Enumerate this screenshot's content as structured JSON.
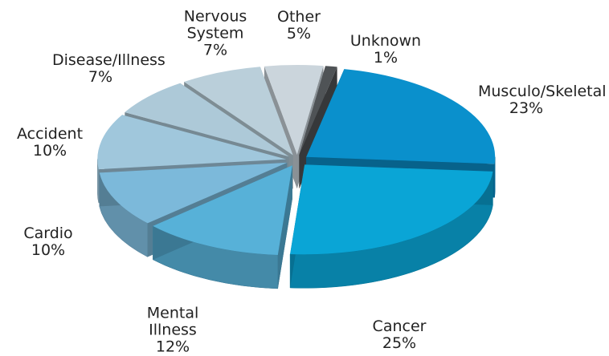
{
  "chart_data": {
    "type": "pie",
    "categories": [
      "Unknown",
      "Musculo/Skeletal",
      "Cancer",
      "Mental Illness",
      "Cardio",
      "Accident",
      "Disease/Illness",
      "Nervous System",
      "Other"
    ],
    "values": [
      1,
      23,
      25,
      12,
      10,
      10,
      7,
      7,
      5
    ],
    "value_labels": [
      "1%",
      "23%",
      "25%",
      "12%",
      "10%",
      "10%",
      "7%",
      "7%",
      "5%"
    ],
    "colors": [
      "#4f5356",
      "#0a90cc",
      "#0aa5d6",
      "#57b1d8",
      "#7cb9da",
      "#a0c7dc",
      "#adc9d8",
      "#bacfda",
      "#cbd5dc"
    ]
  }
}
